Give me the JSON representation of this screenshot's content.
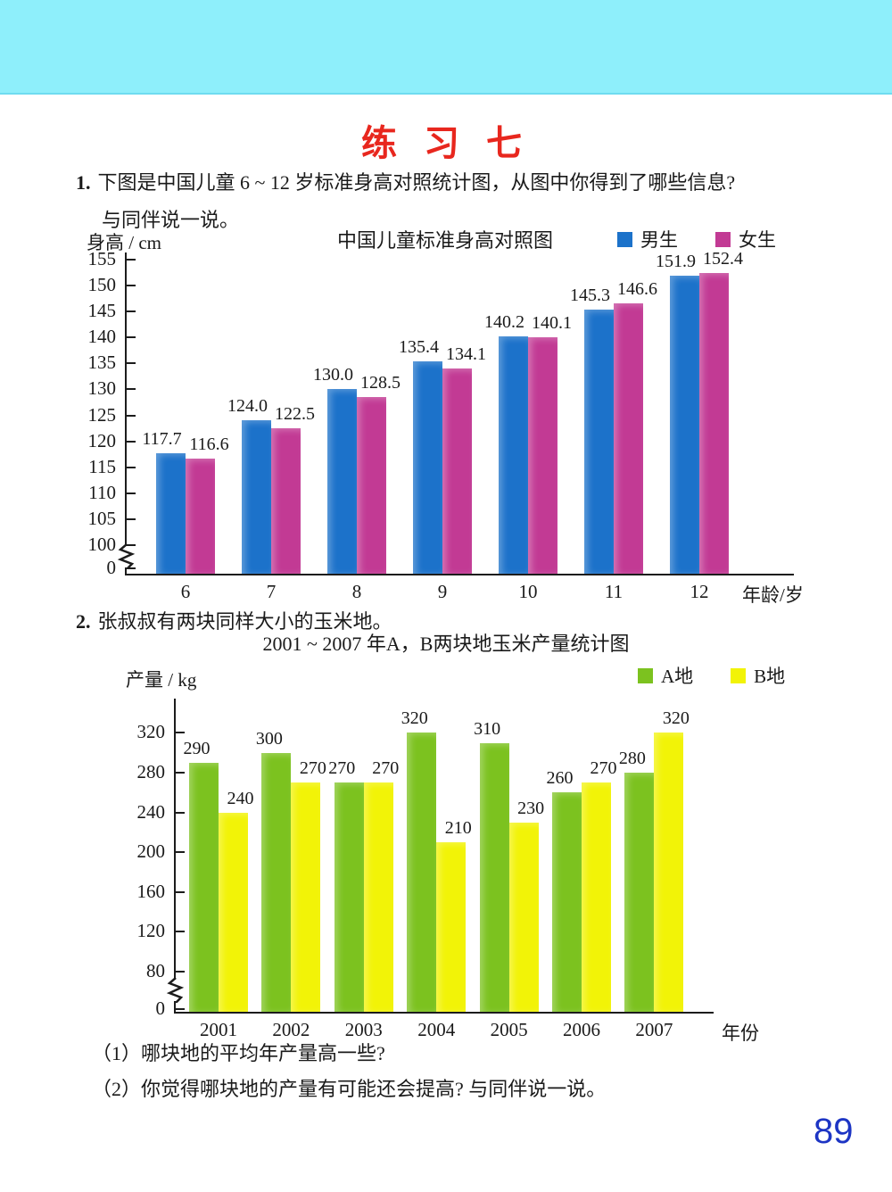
{
  "page": {
    "title": "练 习 七",
    "page_number": "89",
    "colors": {
      "band_cyan": "#8eeffb",
      "title_red": "#e8271e",
      "page_number_blue": "#1d35c4",
      "boys_blue": "#1c72ca",
      "girls_magenta": "#c23a94",
      "field_a_green": "#7cc21f",
      "field_b_yellow": "#f2f307"
    }
  },
  "question1": {
    "number": "1.",
    "text": "下图是中国儿童 6 ~ 12 岁标准身高对照统计图，从图中你得到了哪些信息?",
    "text2": "与同伴说一说。"
  },
  "question2": {
    "number": "2.",
    "text": "张叔叔有两块同样大小的玉米地。"
  },
  "sub_questions": [
    "（1）哪块地的平均年产量高一些?",
    "（2）你觉得哪块地的产量有可能还会提高? 与同伴说一说。"
  ],
  "chart_data": [
    {
      "type": "bar",
      "title": "中国儿童标准身高对照图",
      "ylabel": "身高 / cm",
      "xlabel": "年龄/岁",
      "categories": [
        "6",
        "7",
        "8",
        "9",
        "10",
        "11",
        "12"
      ],
      "series": [
        {
          "name": "男生",
          "color": "#1c72ca",
          "values": [
            117.7,
            124.0,
            130.0,
            135.4,
            140.2,
            145.3,
            151.9
          ],
          "labels": [
            "117.7",
            "124.0",
            "130.0",
            "135.4",
            "140.2",
            "145.3",
            "151.9"
          ]
        },
        {
          "name": "女生",
          "color": "#c23a94",
          "values": [
            116.6,
            122.5,
            128.5,
            134.1,
            140.1,
            146.6,
            152.4
          ],
          "labels": [
            "116.6",
            "122.5",
            "128.5",
            "134.1",
            "140.1",
            "146.6",
            "152.4"
          ]
        }
      ],
      "yticks": [
        0,
        100,
        105,
        110,
        115,
        120,
        125,
        130,
        135,
        140,
        145,
        150,
        155
      ],
      "ylim": [
        0,
        157
      ],
      "axis_break": true,
      "grid": false,
      "legend_position": "top-right"
    },
    {
      "type": "bar",
      "title": "2001 ~ 2007 年A，B两块地玉米产量统计图",
      "ylabel": "产量 / kg",
      "xlabel": "年份",
      "categories": [
        "2001",
        "2002",
        "2003",
        "2004",
        "2005",
        "2006",
        "2007"
      ],
      "series": [
        {
          "name": "A地",
          "color": "#7cc21f",
          "values": [
            290,
            300,
            270,
            320,
            310,
            260,
            280
          ],
          "labels": [
            "290",
            "300",
            "270",
            "320",
            "310",
            "260",
            "280"
          ]
        },
        {
          "name": "B地",
          "color": "#f2f307",
          "values": [
            240,
            270,
            270,
            210,
            230,
            270,
            320
          ],
          "labels": [
            "240",
            "270",
            "270",
            "210",
            "230",
            "270",
            "320"
          ]
        }
      ],
      "yticks": [
        0,
        80,
        120,
        160,
        200,
        240,
        280,
        320
      ],
      "ylim": [
        0,
        340
      ],
      "axis_break": true,
      "grid": false,
      "legend_position": "top-right"
    }
  ]
}
